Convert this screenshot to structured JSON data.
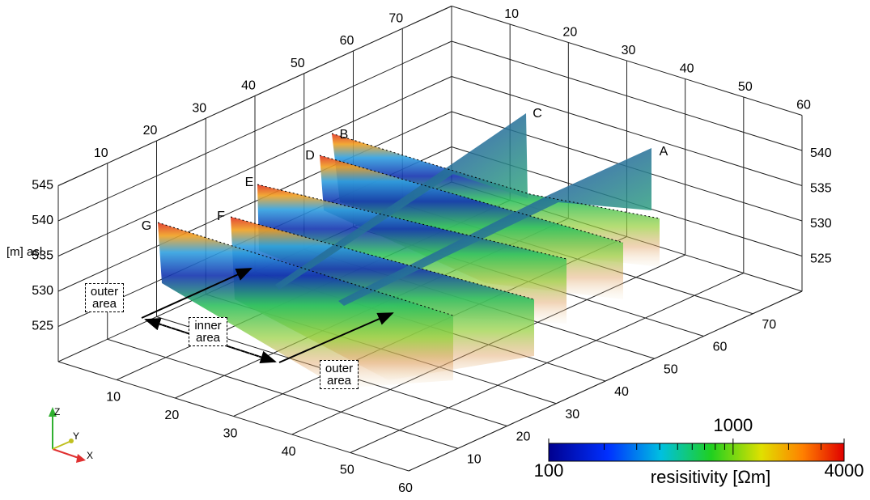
{
  "chart_data": {
    "type": "3d-profiles",
    "xlim": [
      0,
      60
    ],
    "ylim": [
      0,
      80
    ],
    "zlim": [
      520,
      545
    ],
    "xticks": [
      10,
      20,
      30,
      40,
      50,
      60
    ],
    "yticks": [
      10,
      20,
      30,
      40,
      50,
      60,
      70
    ],
    "zticks": [
      525,
      530,
      535,
      540,
      545
    ],
    "zticks_right": [
      525,
      530,
      535,
      540
    ],
    "zlabel": "[m] asl",
    "profiles": [
      "A",
      "B",
      "C",
      "D",
      "E",
      "F",
      "G"
    ],
    "annotations": [
      "outer area",
      "inner area",
      "outer area"
    ],
    "axes_triad": [
      "X",
      "Y",
      "Z"
    ],
    "colorbar": {
      "label": "resisitivity [Ωm]",
      "lim": [
        100,
        4000
      ],
      "ticks": [
        100,
        1000,
        4000
      ],
      "minor_ticks": [
        200,
        300,
        400,
        500,
        600,
        700,
        800,
        900,
        2000,
        3000
      ],
      "log": true
    }
  }
}
